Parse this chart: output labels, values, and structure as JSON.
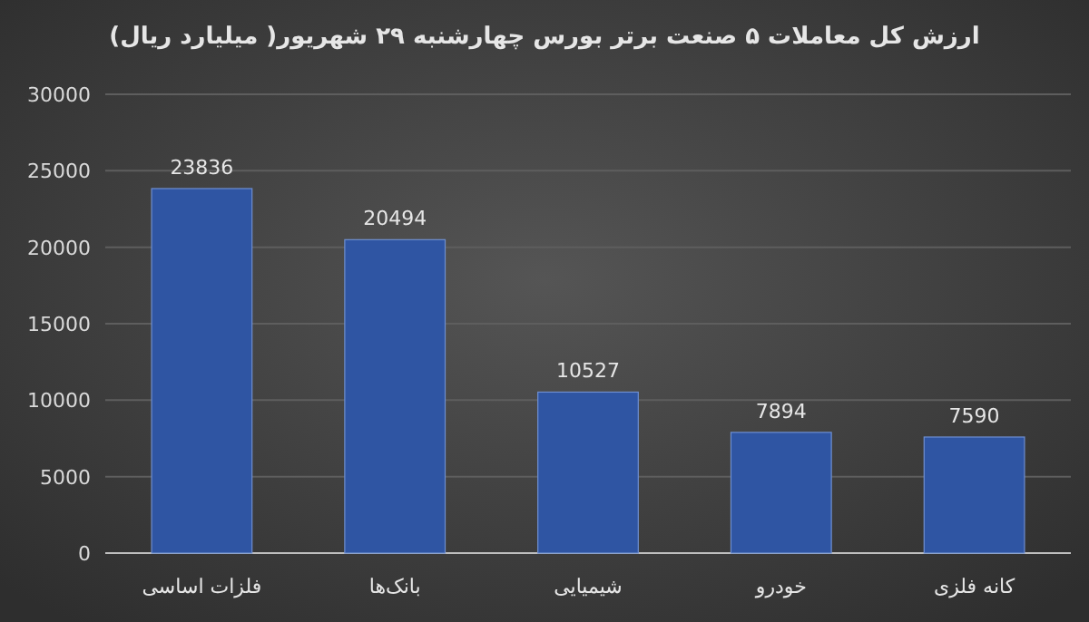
{
  "chart_data": {
    "type": "bar",
    "title": "ارزش کل معاملات ۵ صنعت برتر بورس چهارشنبه ۲۹ شهریور( میلیارد ریال)",
    "categories": [
      "فلزات اساسی",
      "بانک‌ها",
      "شیمیایی",
      "خودرو",
      "کانه فلزی"
    ],
    "values": [
      23836,
      20494,
      10527,
      7894,
      7590
    ],
    "color": "#2f55a3",
    "ylim": [
      0,
      30000
    ],
    "yticks": [
      0,
      5000,
      10000,
      15000,
      20000,
      25000,
      30000
    ],
    "grid": "y",
    "data_labels": true
  }
}
